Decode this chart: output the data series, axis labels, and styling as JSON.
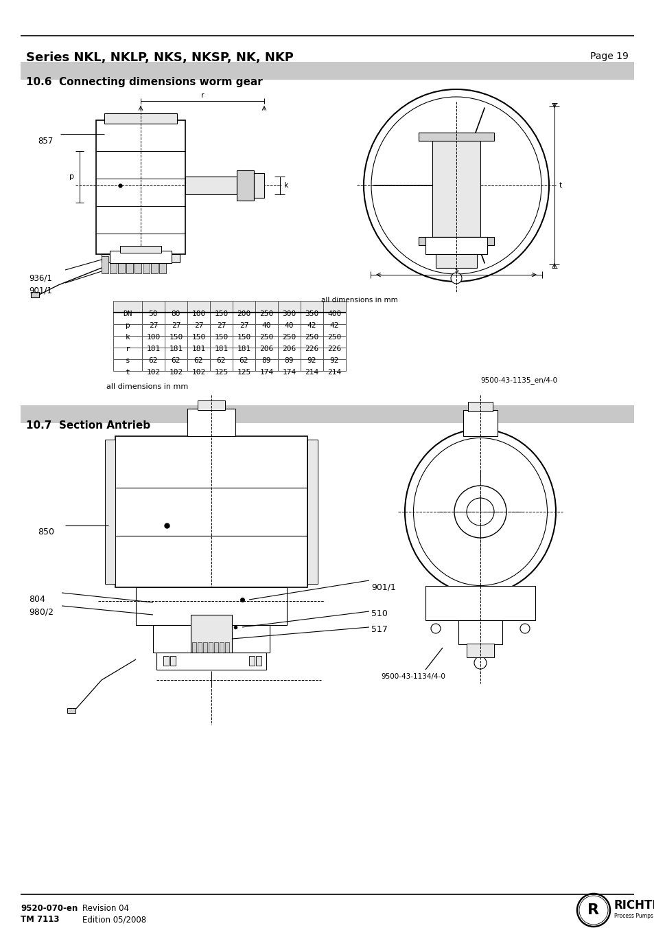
{
  "title": "Series NKL, NKLP, NKS, NKSP, NK, NKP",
  "page": "Page 19",
  "section1_title": "10.6  Connecting dimensions worm gear",
  "section2_title": "10.7  Section Antrieb",
  "table_headers": [
    "DN",
    "50",
    "80",
    "100",
    "150",
    "200",
    "250",
    "300",
    "350",
    "400"
  ],
  "table_rows": [
    [
      "p",
      "27",
      "27",
      "27",
      "27",
      "27",
      "40",
      "40",
      "42",
      "42"
    ],
    [
      "k",
      "100",
      "150",
      "150",
      "150",
      "150",
      "250",
      "250",
      "250",
      "250"
    ],
    [
      "r",
      "181",
      "181",
      "181",
      "181",
      "181",
      "206",
      "206",
      "226",
      "226"
    ],
    [
      "s",
      "62",
      "62",
      "62",
      "62",
      "62",
      "89",
      "89",
      "92",
      "92"
    ],
    [
      "t",
      "102",
      "102",
      "102",
      "125",
      "125",
      "174",
      "174",
      "214",
      "214"
    ]
  ],
  "table_note": "all dimensions in mm",
  "ref1": "9500-43-1135_en/4-0",
  "ref2": "9500-43-1134/4-0",
  "footer_left1": "9520-070-en",
  "footer_left2": "TM 7113",
  "footer_right1": "Revision 04",
  "footer_right2": "Edition 05/2008",
  "bg_color": "#ffffff",
  "section_bg": "#c8c8c8",
  "gray_light": "#e8e8e8",
  "gray_mid": "#d0d0d0",
  "gray_dark": "#a0a0a0",
  "hatch_color": "#888888"
}
